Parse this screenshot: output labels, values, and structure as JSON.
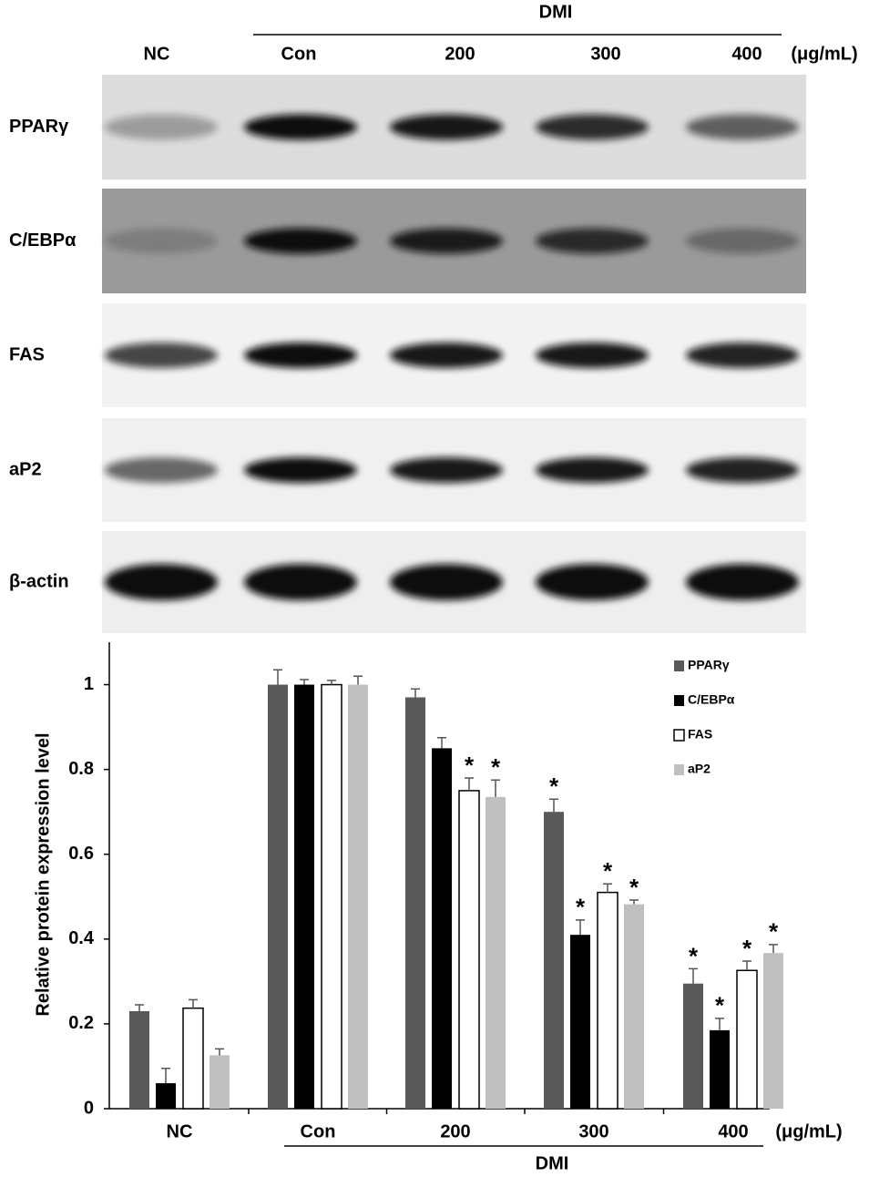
{
  "blot": {
    "group_label": "DMI",
    "lanes": [
      "NC",
      "Con",
      "200",
      "300",
      "400"
    ],
    "unit": "(μg/mL)",
    "proteins": [
      "PPARγ",
      "C/EBPα",
      "FAS",
      "aP2",
      "β-actin"
    ]
  },
  "chart_data": {
    "type": "bar",
    "ylabel": "Relative protein expression level",
    "categories": [
      "NC",
      "Con",
      "200",
      "300",
      "400"
    ],
    "x_unit": "(μg/mL)",
    "group_label": "DMI",
    "ylim": [
      0,
      1.1
    ],
    "yticks": [
      0,
      0.2,
      0.4,
      0.6,
      0.8,
      1
    ],
    "grid": false,
    "legend": "top-right",
    "series": [
      {
        "name": "PPARγ",
        "color": "#595959",
        "values": [
          0.23,
          1.0,
          0.97,
          0.7,
          0.295
        ],
        "errors": [
          0.015,
          0.035,
          0.02,
          0.03,
          0.035
        ],
        "significance": [
          null,
          null,
          null,
          "*",
          "*"
        ]
      },
      {
        "name": "C/EBPα",
        "color": "#000000",
        "values": [
          0.06,
          1.0,
          0.85,
          0.41,
          0.185
        ],
        "errors": [
          0.035,
          0.012,
          0.025,
          0.035,
          0.028
        ],
        "significance": [
          null,
          null,
          null,
          "*",
          "*"
        ]
      },
      {
        "name": "FAS",
        "color": "#ffffff",
        "values": [
          0.237,
          1.0,
          0.75,
          0.51,
          0.326
        ],
        "errors": [
          0.02,
          0.01,
          0.03,
          0.02,
          0.022
        ],
        "significance": [
          null,
          null,
          "*",
          "*",
          "*"
        ]
      },
      {
        "name": "aP2",
        "color": "#bfbfbf",
        "values": [
          0.126,
          1.0,
          0.735,
          0.482,
          0.367
        ],
        "errors": [
          0.015,
          0.02,
          0.04,
          0.01,
          0.02
        ],
        "significance": [
          null,
          null,
          "*",
          "*",
          "*"
        ]
      }
    ]
  }
}
